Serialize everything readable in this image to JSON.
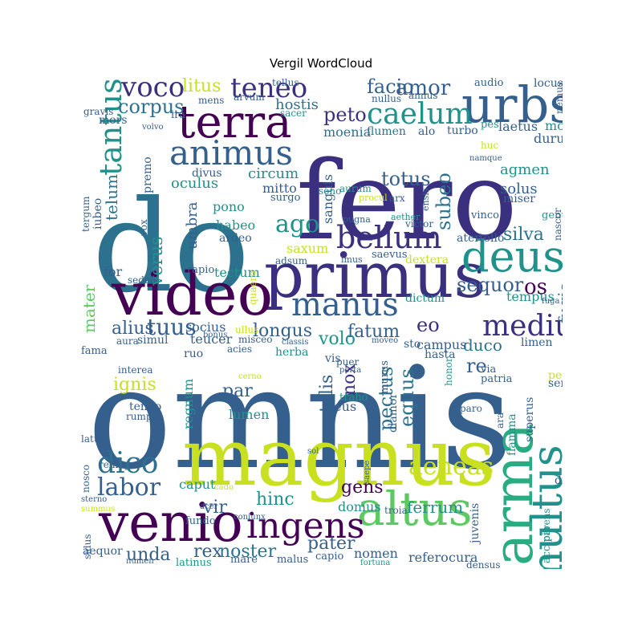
{
  "title": "Vergil WordCloud",
  "palette": {
    "purple": "#440154",
    "indigo": "#3b2f7f",
    "blue": "#355f8d",
    "steel": "#2c728e",
    "teal": "#21918c",
    "green": "#27ad81",
    "lime": "#5ec962",
    "yellow": "#c8e020",
    "gold": "#fde725"
  },
  "words": [
    {
      "text": "omnis"
    },
    {
      "text": "fero"
    },
    {
      "text": "do"
    },
    {
      "text": "magnus"
    },
    {
      "text": "primus"
    },
    {
      "text": "video"
    },
    {
      "text": "venio"
    },
    {
      "text": "arma"
    },
    {
      "text": "urbs"
    },
    {
      "text": "terra"
    },
    {
      "text": "deus"
    },
    {
      "text": "altus"
    },
    {
      "text": "multus"
    },
    {
      "text": "ingens"
    },
    {
      "text": "animus"
    },
    {
      "text": "manus"
    },
    {
      "text": "bellum"
    },
    {
      "text": "medius"
    },
    {
      "text": "tantus"
    },
    {
      "text": "caelum"
    },
    {
      "text": "dico"
    },
    {
      "text": "teneo"
    },
    {
      "text": "voco"
    },
    {
      "text": "labor"
    },
    {
      "text": "aeneas"
    },
    {
      "text": "corpus"
    },
    {
      "text": "ago"
    },
    {
      "text": "amor"
    },
    {
      "text": "facio"
    },
    {
      "text": "peto"
    },
    {
      "text": "sequor"
    },
    {
      "text": "os"
    },
    {
      "text": "tuus"
    },
    {
      "text": "alius"
    },
    {
      "text": "longus"
    },
    {
      "text": "fatum"
    },
    {
      "text": "eo"
    },
    {
      "text": "re"
    },
    {
      "text": "totus"
    },
    {
      "text": "subeo"
    },
    {
      "text": "silva"
    },
    {
      "text": "unda"
    },
    {
      "text": "rex"
    },
    {
      "text": "noster"
    },
    {
      "text": "pater"
    },
    {
      "text": "gens"
    },
    {
      "text": "hinc"
    },
    {
      "text": "ferrum"
    },
    {
      "text": "vir"
    },
    {
      "text": "pectus"
    },
    {
      "text": "talis"
    },
    {
      "text": "nox"
    },
    {
      "text": "equus"
    },
    {
      "text": "litus"
    },
    {
      "text": "hostis"
    },
    {
      "text": "mater"
    },
    {
      "text": "verus"
    },
    {
      "text": "fugio"
    },
    {
      "text": "duco"
    },
    {
      "text": "volo"
    },
    {
      "text": "ignis"
    },
    {
      "text": "par"
    },
    {
      "text": "saxum"
    },
    {
      "text": "telum"
    },
    {
      "text": "agmen"
    },
    {
      "text": "solus"
    },
    {
      "text": "umbra"
    },
    {
      "text": "oculus"
    },
    {
      "text": "circum"
    },
    {
      "text": "mitto"
    },
    {
      "text": "sanguis"
    },
    {
      "text": "habeo"
    },
    {
      "text": "pono"
    },
    {
      "text": "tectum"
    },
    {
      "text": "socius"
    },
    {
      "text": "teucer"
    },
    {
      "text": "campus"
    },
    {
      "text": "tempus"
    },
    {
      "text": "regnum"
    },
    {
      "text": "lumen"
    },
    {
      "text": "meus"
    },
    {
      "text": "domus"
    },
    {
      "text": "nomen"
    },
    {
      "text": "refero"
    },
    {
      "text": "cura"
    },
    {
      "text": "caput"
    },
    {
      "text": "moenia"
    },
    {
      "text": "flumen"
    },
    {
      "text": "laetus"
    },
    {
      "text": "mons"
    },
    {
      "text": "durus"
    },
    {
      "text": "for"
    },
    {
      "text": "rapio"
    },
    {
      "text": "ardeo"
    },
    {
      "text": "vinco"
    },
    {
      "text": "miser"
    },
    {
      "text": "genu"
    },
    {
      "text": "turbo"
    },
    {
      "text": "alo"
    },
    {
      "text": "pes"
    },
    {
      "text": "locus"
    },
    {
      "text": "nemus"
    },
    {
      "text": "audio"
    },
    {
      "text": "annus"
    },
    {
      "text": "nullus"
    },
    {
      "text": "sacer"
    },
    {
      "text": "arvum"
    },
    {
      "text": "tellus"
    },
    {
      "text": "mens"
    },
    {
      "text": "gravis"
    },
    {
      "text": "mors"
    },
    {
      "text": "volvo"
    },
    {
      "text": "ira"
    },
    {
      "text": "premo"
    },
    {
      "text": "divus"
    },
    {
      "text": "surgo"
    },
    {
      "text": "sono"
    },
    {
      "text": "aurum"
    },
    {
      "text": "procul"
    },
    {
      "text": "arx"
    },
    {
      "text": "ensis"
    },
    {
      "text": "huc"
    },
    {
      "text": "namque"
    },
    {
      "text": "iubeo"
    },
    {
      "text": "tergum"
    },
    {
      "text": "vox"
    },
    {
      "text": "ater"
    },
    {
      "text": "tollo"
    },
    {
      "text": "nascor"
    },
    {
      "text": "victor"
    },
    {
      "text": "aether"
    },
    {
      "text": "pugna"
    },
    {
      "text": "imus"
    },
    {
      "text": "saevus"
    },
    {
      "text": "adsum"
    },
    {
      "text": "dextera"
    },
    {
      "text": "sedeo"
    },
    {
      "text": "quaero"
    },
    {
      "text": "dictum"
    },
    {
      "text": "fuga"
    },
    {
      "text": "limen"
    },
    {
      "text": "hasta"
    },
    {
      "text": "vis"
    },
    {
      "text": "sto"
    },
    {
      "text": "moveo"
    },
    {
      "text": "classis"
    },
    {
      "text": "misceo"
    },
    {
      "text": "ullus"
    },
    {
      "text": "bonus"
    },
    {
      "text": "simul"
    },
    {
      "text": "aura"
    },
    {
      "text": "fama"
    },
    {
      "text": "ruo"
    },
    {
      "text": "acies"
    },
    {
      "text": "herba"
    },
    {
      "text": "puer"
    },
    {
      "text": "porta"
    },
    {
      "text": "murus"
    },
    {
      "text": "clamor"
    },
    {
      "text": "traho"
    },
    {
      "text": "honor"
    },
    {
      "text": "paro"
    },
    {
      "text": "via"
    },
    {
      "text": "patria"
    },
    {
      "text": "pecus"
    },
    {
      "text": "servo"
    },
    {
      "text": "superus"
    },
    {
      "text": "flamma"
    },
    {
      "text": "ara"
    },
    {
      "text": "interea"
    },
    {
      "text": "tendo"
    },
    {
      "text": "rumpo"
    },
    {
      "text": "cerno"
    },
    {
      "text": "latus"
    },
    {
      "text": "relinquo"
    },
    {
      "text": "nosco"
    },
    {
      "text": "cado"
    },
    {
      "text": "sol"
    },
    {
      "text": "saepe"
    },
    {
      "text": "troia"
    },
    {
      "text": "juvenis"
    },
    {
      "text": "parens"
    },
    {
      "text": "dies"
    },
    {
      "text": "accipio"
    },
    {
      "text": "sterno"
    },
    {
      "text": "summus"
    },
    {
      "text": "acer"
    },
    {
      "text": "fundo"
    },
    {
      "text": "coniunx"
    },
    {
      "text": "sidus"
    },
    {
      "text": "aequor"
    },
    {
      "text": "latinus"
    },
    {
      "text": "numen"
    },
    {
      "text": "mare"
    },
    {
      "text": "malus"
    },
    {
      "text": "capio"
    },
    {
      "text": "fortuna"
    },
    {
      "text": "densus"
    }
  ]
}
